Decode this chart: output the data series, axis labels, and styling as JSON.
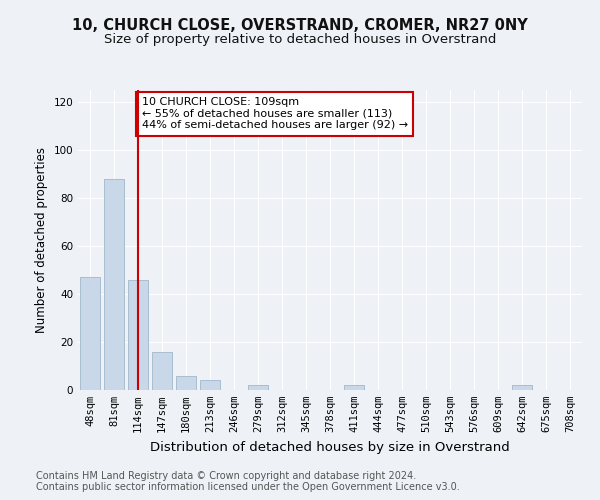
{
  "title": "10, CHURCH CLOSE, OVERSTRAND, CROMER, NR27 0NY",
  "subtitle": "Size of property relative to detached houses in Overstrand",
  "xlabel": "Distribution of detached houses by size in Overstrand",
  "ylabel": "Number of detached properties",
  "bar_labels": [
    "48sqm",
    "81sqm",
    "114sqm",
    "147sqm",
    "180sqm",
    "213sqm",
    "246sqm",
    "279sqm",
    "312sqm",
    "345sqm",
    "378sqm",
    "411sqm",
    "444sqm",
    "477sqm",
    "510sqm",
    "543sqm",
    "576sqm",
    "609sqm",
    "642sqm",
    "675sqm",
    "708sqm"
  ],
  "bar_values": [
    47,
    88,
    46,
    16,
    6,
    4,
    0,
    2,
    0,
    0,
    0,
    2,
    0,
    0,
    0,
    0,
    0,
    0,
    2,
    0,
    0
  ],
  "bar_color": "#c8d8e8",
  "bar_edgecolor": "#a0b8cc",
  "ylim": [
    0,
    125
  ],
  "yticks": [
    0,
    20,
    40,
    60,
    80,
    100,
    120
  ],
  "vline_x": 2,
  "vline_color": "#cc0000",
  "annotation_text": "10 CHURCH CLOSE: 109sqm\n← 55% of detached houses are smaller (113)\n44% of semi-detached houses are larger (92) →",
  "annotation_box_color": "#ffffff",
  "annotation_box_edgecolor": "#cc0000",
  "title_fontsize": 10.5,
  "subtitle_fontsize": 9.5,
  "xlabel_fontsize": 9.5,
  "ylabel_fontsize": 8.5,
  "tick_fontsize": 7.5,
  "annotation_fontsize": 8,
  "footer_text": "Contains HM Land Registry data © Crown copyright and database right 2024.\nContains public sector information licensed under the Open Government Licence v3.0.",
  "footer_fontsize": 7,
  "background_color": "#eef2f7",
  "plot_bg_color": "#eef2f7"
}
